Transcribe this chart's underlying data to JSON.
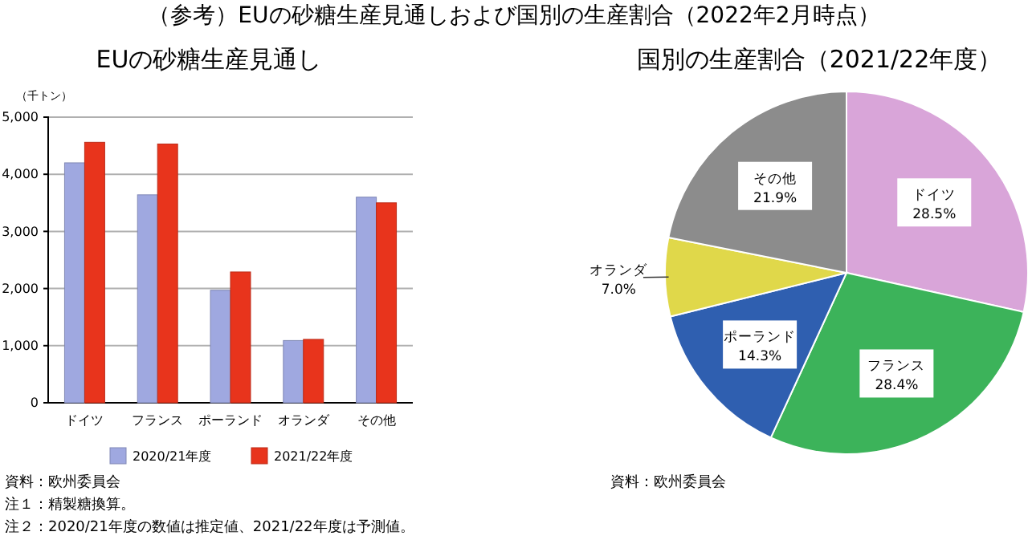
{
  "chart_data": [
    {
      "type": "bar",
      "title": "（参考）EUの砂糖生産見通しおよび国別の生産割合（2022年2月時点）",
      "subtitle": "EUの砂糖生産見通し",
      "ylabel": "（千トン）",
      "categories": [
        "ドイツ",
        "フランス",
        "ポーランド",
        "オランダ",
        "その他"
      ],
      "series": [
        {
          "name": "2020/21年度",
          "color": "#9fa8e0",
          "values": [
            4200,
            3640,
            1970,
            1090,
            3600
          ]
        },
        {
          "name": "2021/22年度",
          "color": "#e8341c",
          "values": [
            4560,
            4530,
            2290,
            1110,
            3500
          ]
        }
      ],
      "ylim": [
        0,
        5000
      ],
      "yticks": [
        {
          "value": 0,
          "label": "0"
        },
        {
          "value": 1000,
          "label": "1,000"
        },
        {
          "value": 2000,
          "label": "2,000"
        },
        {
          "value": 3000,
          "label": "3,000"
        },
        {
          "value": 4000,
          "label": "4,000"
        },
        {
          "value": 5000,
          "label": "5,000"
        }
      ],
      "grid": "y",
      "legend": "bottom",
      "annotations": [
        "資料：欧州委員会",
        "注１：精製糖換算。",
        "注２：2020/21年度の数値は推定値、2021/22年度は予測値。"
      ]
    },
    {
      "type": "pie",
      "title": "国別の生産割合（2021/22年度）",
      "categories": [
        "ドイツ",
        "フランス",
        "ポーランド",
        "オランダ",
        "その他"
      ],
      "values": [
        28.5,
        28.4,
        14.3,
        7.0,
        21.9
      ],
      "value_labels": [
        "28.5%",
        "28.4%",
        "14.3%",
        "7.0%",
        "21.9%"
      ],
      "colors": [
        "#d9a5d9",
        "#3cb35a",
        "#2f5fb0",
        "#e0d84a",
        "#8c8c8c"
      ],
      "annotations": [
        "資料：欧州委員会"
      ]
    }
  ]
}
